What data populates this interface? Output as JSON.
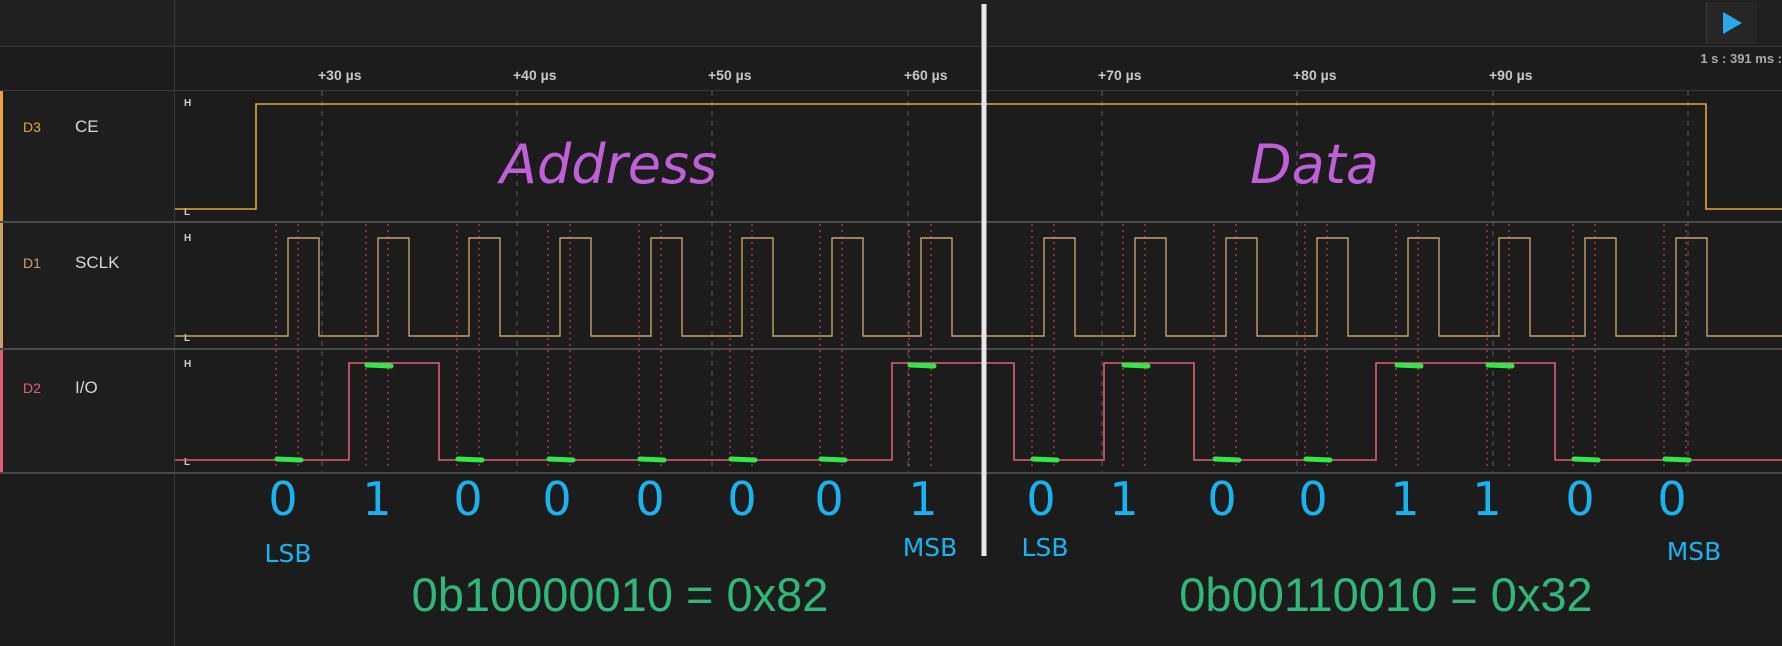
{
  "ruler": {
    "ticks": [
      "+30 µs",
      "+40 µs",
      "+50 µs",
      "+60 µs",
      "+70 µs",
      "+80 µs",
      "+90 µs"
    ],
    "time_readout": "1 s : 391 ms :"
  },
  "channels": [
    {
      "id": "D3",
      "name": "CE",
      "color": "#e8a33a"
    },
    {
      "id": "D1",
      "name": "SCLK",
      "color": "#c8a068"
    },
    {
      "id": "D2",
      "name": "I/O",
      "color": "#e06070"
    }
  ],
  "level_labels": {
    "high": "H",
    "low": "L"
  },
  "annotations": {
    "address_label": "Address",
    "data_label": "Data",
    "address_bits": [
      "0",
      "1",
      "0",
      "0",
      "0",
      "0",
      "0",
      "1"
    ],
    "data_bits": [
      "0",
      "1",
      "0",
      "0",
      "1",
      "1",
      "0",
      "0"
    ],
    "lsb": "LSB",
    "msb": "MSB",
    "address_result": "0b10000010 = 0x82",
    "data_result": "0b00110010 = 0x32"
  },
  "colors": {
    "handwriting_purple": "#c060d8",
    "handwriting_blue": "#18b4f0",
    "result_green": "#30b878",
    "sample_mark": "#33e64a",
    "play_blue": "#2aa8e8"
  }
}
